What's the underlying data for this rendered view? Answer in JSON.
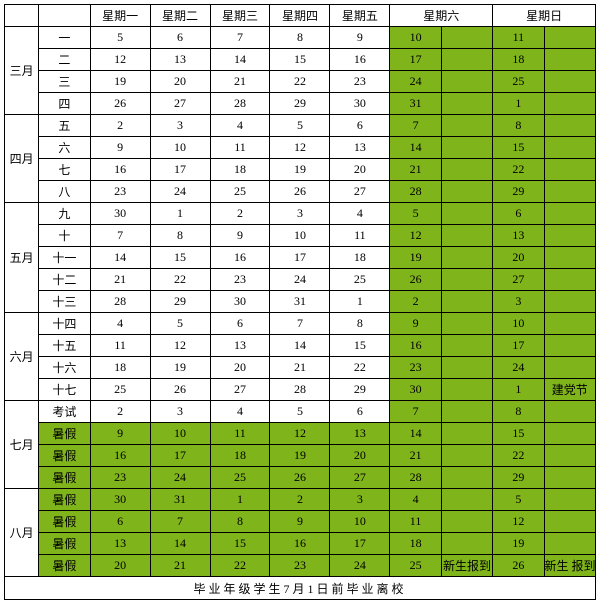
{
  "headers": [
    "",
    "",
    "星期一",
    "星期二",
    "星期三",
    "星期四",
    "星期五",
    "星期六",
    "",
    "星期日",
    ""
  ],
  "months": [
    "三月",
    "四月",
    "五月",
    "六月",
    "七月",
    "八月"
  ],
  "month_spans": [
    4,
    4,
    5,
    4,
    4,
    4
  ],
  "rows": [
    {
      "w": "一",
      "d": [
        "5",
        "6",
        "7",
        "8",
        "9"
      ],
      "sat": [
        "10",
        ""
      ],
      "sun": [
        "11",
        ""
      ]
    },
    {
      "w": "二",
      "d": [
        "12",
        "13",
        "14",
        "15",
        "16"
      ],
      "sat": [
        "17",
        ""
      ],
      "sun": [
        "18",
        ""
      ]
    },
    {
      "w": "三",
      "d": [
        "19",
        "20",
        "21",
        "22",
        "23"
      ],
      "sat": [
        "24",
        ""
      ],
      "sun": [
        "25",
        ""
      ]
    },
    {
      "w": "四",
      "d": [
        "26",
        "27",
        "28",
        "29",
        "30"
      ],
      "sat": [
        "31",
        ""
      ],
      "sun": [
        "1",
        ""
      ]
    },
    {
      "w": "五",
      "d": [
        "2",
        "3",
        "4",
        "5",
        "6"
      ],
      "sat": [
        "7",
        ""
      ],
      "sun": [
        "8",
        ""
      ]
    },
    {
      "w": "六",
      "d": [
        "9",
        "10",
        "11",
        "12",
        "13"
      ],
      "sat": [
        "14",
        ""
      ],
      "sun": [
        "15",
        ""
      ]
    },
    {
      "w": "七",
      "d": [
        "16",
        "17",
        "18",
        "19",
        "20"
      ],
      "sat": [
        "21",
        ""
      ],
      "sun": [
        "22",
        ""
      ]
    },
    {
      "w": "八",
      "d": [
        "23",
        "24",
        "25",
        "26",
        "27"
      ],
      "sat": [
        "28",
        ""
      ],
      "sun": [
        "29",
        ""
      ]
    },
    {
      "w": "九",
      "d": [
        "30",
        "1",
        "2",
        "3",
        "4"
      ],
      "sat": [
        "5",
        ""
      ],
      "sun": [
        "6",
        ""
      ]
    },
    {
      "w": "十",
      "d": [
        "7",
        "8",
        "9",
        "10",
        "11"
      ],
      "sat": [
        "12",
        ""
      ],
      "sun": [
        "13",
        ""
      ]
    },
    {
      "w": "十一",
      "d": [
        "14",
        "15",
        "16",
        "17",
        "18"
      ],
      "sat": [
        "19",
        ""
      ],
      "sun": [
        "20",
        ""
      ]
    },
    {
      "w": "十二",
      "d": [
        "21",
        "22",
        "23",
        "24",
        "25"
      ],
      "sat": [
        "26",
        ""
      ],
      "sun": [
        "27",
        ""
      ]
    },
    {
      "w": "十三",
      "d": [
        "28",
        "29",
        "30",
        "31",
        "1"
      ],
      "sat": [
        "2",
        ""
      ],
      "sun": [
        "3",
        ""
      ]
    },
    {
      "w": "十四",
      "d": [
        "4",
        "5",
        "6",
        "7",
        "8"
      ],
      "sat": [
        "9",
        ""
      ],
      "sun": [
        "10",
        ""
      ]
    },
    {
      "w": "十五",
      "d": [
        "11",
        "12",
        "13",
        "14",
        "15"
      ],
      "sat": [
        "16",
        ""
      ],
      "sun": [
        "17",
        ""
      ]
    },
    {
      "w": "十六",
      "d": [
        "18",
        "19",
        "20",
        "21",
        "22"
      ],
      "sat": [
        "23",
        ""
      ],
      "sun": [
        "24",
        ""
      ]
    },
    {
      "w": "十七",
      "d": [
        "25",
        "26",
        "27",
        "28",
        "29"
      ],
      "sat": [
        "30",
        ""
      ],
      "sun": [
        "1",
        "建党节"
      ]
    },
    {
      "w": "考试",
      "d": [
        "2",
        "3",
        "4",
        "5",
        "6"
      ],
      "sat": [
        "7",
        ""
      ],
      "sun": [
        "8",
        ""
      ]
    },
    {
      "w": "暑假",
      "d": [
        "9",
        "10",
        "11",
        "12",
        "13"
      ],
      "sat": [
        "14",
        ""
      ],
      "sun": [
        "15",
        ""
      ],
      "allgreen": true
    },
    {
      "w": "暑假",
      "d": [
        "16",
        "17",
        "18",
        "19",
        "20"
      ],
      "sat": [
        "21",
        ""
      ],
      "sun": [
        "22",
        ""
      ],
      "allgreen": true
    },
    {
      "w": "暑假",
      "d": [
        "23",
        "24",
        "25",
        "26",
        "27"
      ],
      "sat": [
        "28",
        ""
      ],
      "sun": [
        "29",
        ""
      ],
      "allgreen": true
    },
    {
      "w": "暑假",
      "d": [
        "30",
        "31",
        "1",
        "2",
        "3"
      ],
      "sat": [
        "4",
        ""
      ],
      "sun": [
        "5",
        ""
      ],
      "allgreen": true
    },
    {
      "w": "暑假",
      "d": [
        "6",
        "7",
        "8",
        "9",
        "10"
      ],
      "sat": [
        "11",
        ""
      ],
      "sun": [
        "12",
        ""
      ],
      "allgreen": true
    },
    {
      "w": "暑假",
      "d": [
        "13",
        "14",
        "15",
        "16",
        "17"
      ],
      "sat": [
        "18",
        ""
      ],
      "sun": [
        "19",
        ""
      ],
      "allgreen": true
    },
    {
      "w": "暑假",
      "d": [
        "20",
        "21",
        "22",
        "23",
        "24"
      ],
      "sat": [
        "25",
        "新生报到"
      ],
      "sun": [
        "26",
        "新生 报到"
      ],
      "allgreen": true
    }
  ],
  "footer": "毕业年级学生7月1日前毕业离校",
  "colors": {
    "green": "#7fb41b"
  }
}
